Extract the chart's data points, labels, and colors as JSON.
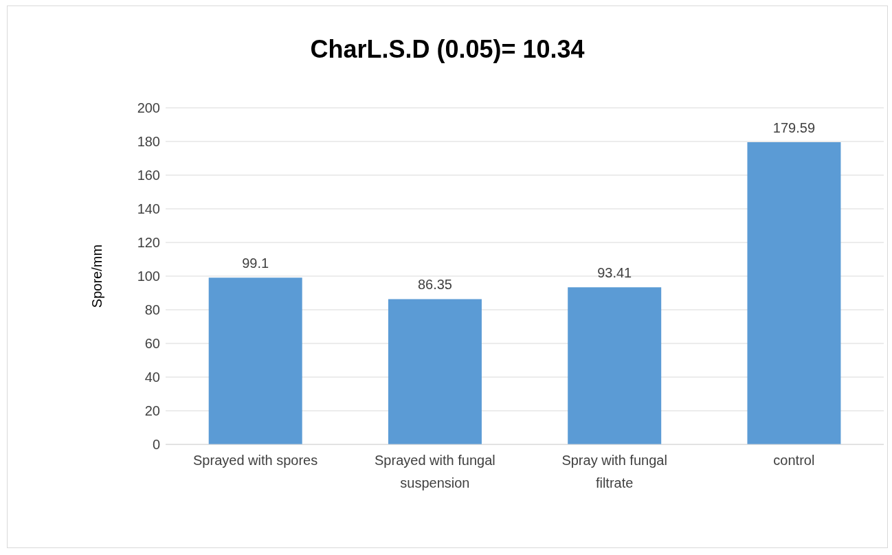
{
  "chart_data": {
    "type": "bar",
    "title": "CharL.S.D (0.05)= 10.34",
    "ylabel": "Spore/mm",
    "categories": [
      "Sprayed with spores",
      "Sprayed with fungal suspension",
      "Spray with fungal filtrate",
      "control"
    ],
    "values": [
      99.1,
      86.35,
      93.41,
      179.59
    ],
    "color": "#5b9bd5",
    "ylim": [
      0,
      200
    ],
    "yticks": [
      0,
      20,
      40,
      60,
      80,
      100,
      120,
      140,
      160,
      180,
      200
    ],
    "grid": "y",
    "data_labels": true
  }
}
